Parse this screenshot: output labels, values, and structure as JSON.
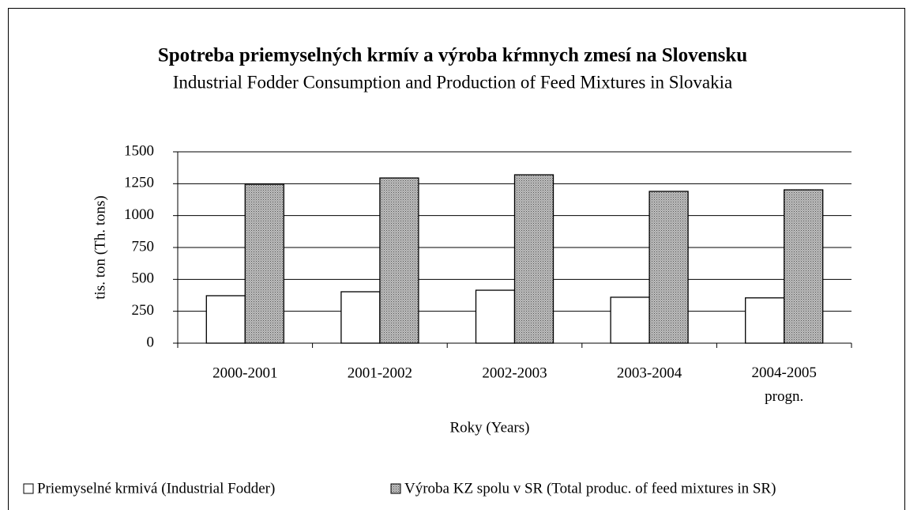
{
  "chart_data": {
    "type": "bar",
    "title": "Spotreba priemyselných krmív a výroba kŕmnych zmesí na Slovensku",
    "subtitle": "Industrial Fodder Consumption and Production of Feed Mixtures in Slovakia",
    "x_label": "Roky (Years)",
    "y_label": "tis. ton (Th. tons)",
    "categories": [
      "2000-2001",
      "2001-2002",
      "2002-2003",
      "2003-2004",
      "2004-2005\nprogn."
    ],
    "series": [
      {
        "name": "Priemyselné krmivá (Industrial Fodder)",
        "color": "#ffffff",
        "values": [
          372,
          403,
          415,
          360,
          355
        ]
      },
      {
        "name": "Výroba KZ spolu v SR (Total produc. of feed mixtures in SR)",
        "color": "#bdbdbd",
        "values": [
          1246,
          1295,
          1320,
          1190,
          1202
        ]
      }
    ],
    "ylim": [
      0,
      1500
    ],
    "yticks": [
      0,
      250,
      500,
      750,
      1000,
      1250,
      1500
    ],
    "grid": true,
    "legend": "bottom"
  }
}
